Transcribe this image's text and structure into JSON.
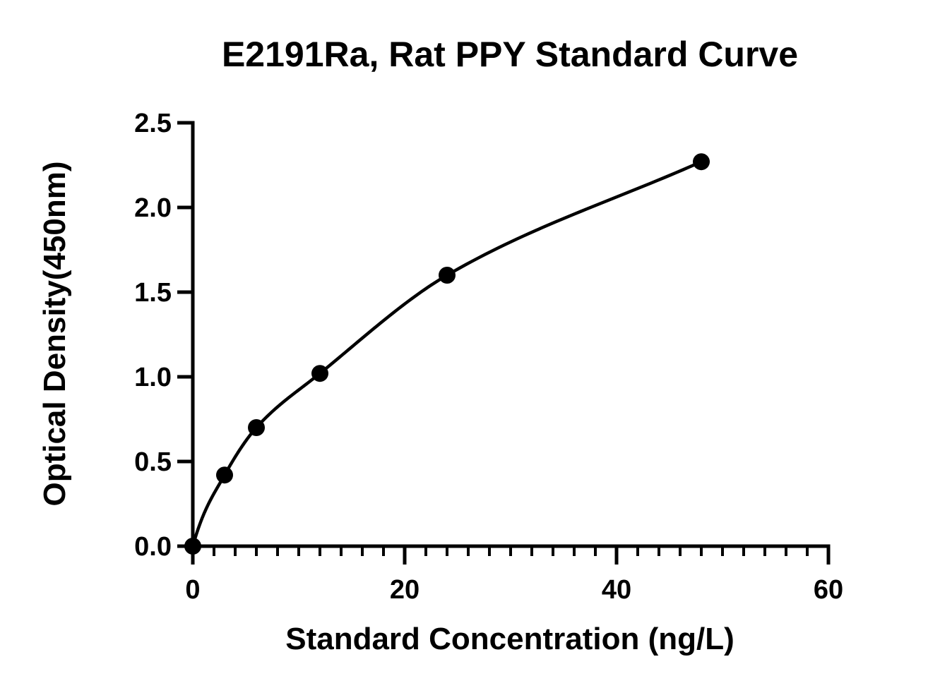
{
  "chart_data": {
    "type": "scatter",
    "title": "E2191Ra, Rat PPY Standard Curve",
    "xlabel": "Standard Concentration (ng/L)",
    "ylabel": "Optical Density(450nm)",
    "xlim": [
      0,
      60
    ],
    "ylim": [
      0,
      2.5
    ],
    "x_ticks": [
      0,
      20,
      40,
      60
    ],
    "x_tick_labels": [
      "0",
      "20",
      "40",
      "60"
    ],
    "x_minor_step": 2,
    "y_ticks": [
      0,
      0.5,
      1.0,
      1.5,
      2.0,
      2.5
    ],
    "y_tick_labels": [
      "0.0",
      "0.5",
      "1.0",
      "1.5",
      "2.0",
      "2.5"
    ],
    "grid": false,
    "legend": "none",
    "series": [
      {
        "points": [
          {
            "x": 0,
            "y": 0.0
          },
          {
            "x": 3,
            "y": 0.42
          },
          {
            "x": 6,
            "y": 0.7
          },
          {
            "x": 12,
            "y": 1.02
          },
          {
            "x": 24,
            "y": 1.6
          },
          {
            "x": 48,
            "y": 2.27
          }
        ],
        "fit_curve": true,
        "color": "#000000"
      }
    ]
  }
}
